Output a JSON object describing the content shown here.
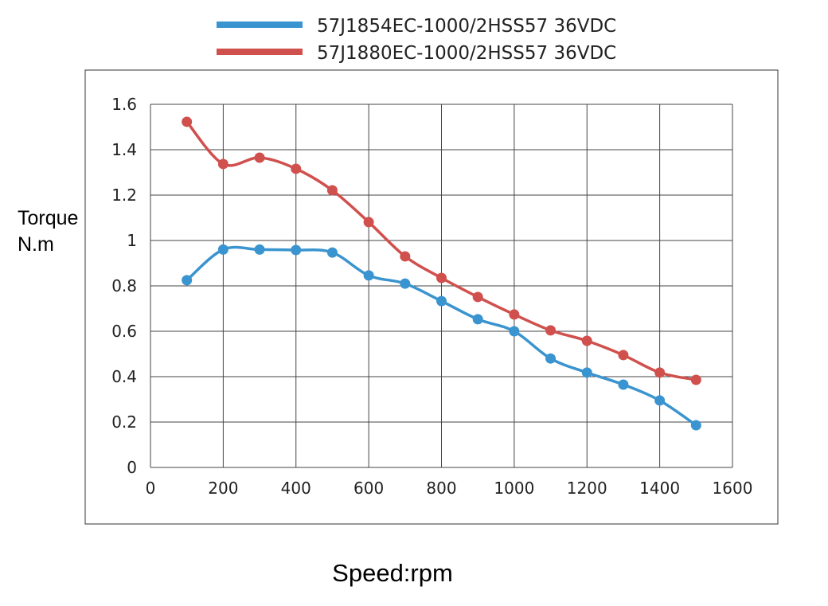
{
  "chart_data": {
    "type": "line",
    "xlabel": "Speed:rpm",
    "ylabel": [
      "Torque",
      "N.m"
    ],
    "xlim": [
      0,
      1600
    ],
    "ylim": [
      0,
      1.6
    ],
    "xticks": [
      "0",
      "200",
      "400",
      "600",
      "800",
      "1000",
      "1200",
      "1400",
      "1600"
    ],
    "yticks": [
      "0",
      "0.2",
      "0.4",
      "0.6",
      "0.8",
      "1",
      "1.2",
      "1.4",
      "1.6"
    ],
    "grid": true,
    "legend_position": "top",
    "x": [
      100,
      200,
      300,
      400,
      500,
      600,
      700,
      800,
      900,
      1000,
      1100,
      1200,
      1300,
      1400,
      1500
    ],
    "series": [
      {
        "name": "57J1854EC-1000/2HSS57  36VDC",
        "color": "#3a94cf",
        "values": [
          0.825,
          0.96,
          0.96,
          0.958,
          0.947,
          0.846,
          0.81,
          0.733,
          0.653,
          0.6,
          0.48,
          0.418,
          0.365,
          0.295,
          0.186
        ]
      },
      {
        "name": "57J1880EC-1000/2HSS57  36VDC",
        "color": "#d0504d",
        "values": [
          1.523,
          1.337,
          1.365,
          1.316,
          1.221,
          1.081,
          0.93,
          0.835,
          0.751,
          0.674,
          0.604,
          0.558,
          0.495,
          0.418,
          0.386
        ]
      }
    ]
  }
}
